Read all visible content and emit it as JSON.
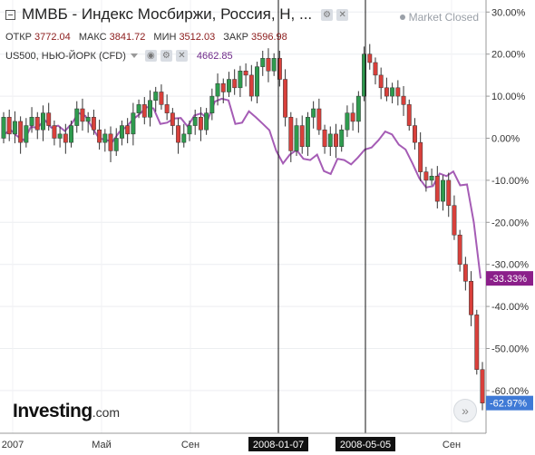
{
  "header": {
    "title": "ММВБ - Индекс Мосбиржи, Россия, Н, ...",
    "status": "Market Closed"
  },
  "ohlc": {
    "open_label": "ОТКР",
    "open": "3772.04",
    "high_label": "МАКС",
    "high": "3841.72",
    "low_label": "МИН",
    "low": "3512.03",
    "close_label": "ЗАКР",
    "close": "3596.98"
  },
  "compare": {
    "name": "US500, НЬЮ-ЙОРК (CFD)",
    "value": "4662.85"
  },
  "logo": {
    "text": "Investing",
    "domain": ".com"
  },
  "colors": {
    "up": "#2e9b4e",
    "down": "#d9403b",
    "compare_line": "#a55cb5",
    "compare_badge": "#8b1f8a",
    "last_badge": "#3f7ad6"
  },
  "chart_data": {
    "type": "candlestick",
    "y_axis": {
      "side": "right",
      "ticks": [
        "30.00%",
        "20.00%",
        "10.00%",
        "0.00%",
        "-10.00%",
        "-20.00%",
        "-30.00%",
        "-40.00%",
        "-50.00%",
        "-60.00%"
      ],
      "range": [
        -63,
        31
      ]
    },
    "x_axis": {
      "ticks": [
        "2007",
        "Май",
        "Сен",
        "2008-01-07",
        "2008-05-05",
        "Сен"
      ]
    },
    "crosshairs": [
      "2008-01-07",
      "2008-05-05"
    ],
    "last_values": {
      "compare": "-33.33%",
      "main": "-62.97%"
    },
    "compare_values": [
      0.8,
      2,
      0.5,
      -0.5,
      2.7,
      2.5,
      4.4,
      2.5,
      3,
      1.7,
      3.5,
      6,
      5.3,
      2.5,
      0,
      -0.4,
      -0.8,
      1.5,
      2.7,
      4.5,
      5.8,
      7.4,
      7.1,
      3.4,
      3.7,
      4.7,
      4.8,
      2.8,
      5.4,
      5.9,
      4.5,
      8.7,
      9.4,
      9,
      3.4,
      3.7,
      6.4,
      5,
      3.5,
      1.9,
      -3,
      -6,
      -3.9,
      -2.8,
      -4.9,
      -5.2,
      -3.9,
      -7.8,
      -8.5,
      -4.9,
      -5.2,
      -6.2,
      -4.6,
      -2.7,
      -2.2,
      -0.5,
      1.6,
      0.9,
      -1.5,
      -2.7,
      -6,
      -9.5,
      -11.7,
      -11.4,
      -8.4,
      -9,
      -7.9,
      -11.2,
      -11,
      -20,
      -33.33
    ],
    "candles": [
      {
        "o": 0,
        "c": 5
      },
      {
        "o": 5,
        "c": 1
      },
      {
        "o": 1,
        "c": 4
      },
      {
        "o": 4,
        "c": -1
      },
      {
        "o": -1,
        "c": 3
      },
      {
        "o": 3,
        "c": 5
      },
      {
        "o": 5,
        "c": 2
      },
      {
        "o": 2,
        "c": 6
      },
      {
        "o": 6,
        "c": 3
      },
      {
        "o": 3,
        "c": 0
      },
      {
        "o": 0,
        "c": 1
      },
      {
        "o": 1,
        "c": -1
      },
      {
        "o": -1,
        "c": 3
      },
      {
        "o": 3,
        "c": 7
      },
      {
        "o": 7,
        "c": 4
      },
      {
        "o": 4,
        "c": 5
      },
      {
        "o": 5,
        "c": 2
      },
      {
        "o": 2,
        "c": -1
      },
      {
        "o": -1,
        "c": 1
      },
      {
        "o": 1,
        "c": -3
      },
      {
        "o": -3,
        "c": 0
      },
      {
        "o": 0,
        "c": 3
      },
      {
        "o": 3,
        "c": 1
      },
      {
        "o": 1,
        "c": 6
      },
      {
        "o": 6,
        "c": 8
      },
      {
        "o": 8,
        "c": 5
      },
      {
        "o": 5,
        "c": 9
      },
      {
        "o": 9,
        "c": 11
      },
      {
        "o": 11,
        "c": 8
      },
      {
        "o": 8,
        "c": 6
      },
      {
        "o": 6,
        "c": 3
      },
      {
        "o": 3,
        "c": -1
      },
      {
        "o": -1,
        "c": 1
      },
      {
        "o": 1,
        "c": 3
      },
      {
        "o": 3,
        "c": 5
      },
      {
        "o": 5,
        "c": 2
      },
      {
        "o": 2,
        "c": 6
      },
      {
        "o": 6,
        "c": 10
      },
      {
        "o": 10,
        "c": 13
      },
      {
        "o": 13,
        "c": 11
      },
      {
        "o": 11,
        "c": 14
      },
      {
        "o": 14,
        "c": 12
      },
      {
        "o": 12,
        "c": 16
      },
      {
        "o": 16,
        "c": 15
      },
      {
        "o": 15,
        "c": 10
      },
      {
        "o": 10,
        "c": 17
      },
      {
        "o": 17,
        "c": 19
      },
      {
        "o": 19,
        "c": 16
      },
      {
        "o": 16,
        "c": 19
      },
      {
        "o": 19,
        "c": 14
      },
      {
        "o": 14,
        "c": 5
      },
      {
        "o": 5,
        "c": -3
      },
      {
        "o": -3,
        "c": 3
      },
      {
        "o": 3,
        "c": -2
      },
      {
        "o": -2,
        "c": 5
      },
      {
        "o": 5,
        "c": 7
      },
      {
        "o": 7,
        "c": 2
      },
      {
        "o": 2,
        "c": -2
      },
      {
        "o": -2,
        "c": 1
      },
      {
        "o": 1,
        "c": -2
      },
      {
        "o": -2,
        "c": 2
      },
      {
        "o": 2,
        "c": 6
      },
      {
        "o": 6,
        "c": 4
      },
      {
        "o": 4,
        "c": 10
      },
      {
        "o": 10,
        "c": 20
      },
      {
        "o": 20,
        "c": 18
      },
      {
        "o": 18,
        "c": 15
      },
      {
        "o": 15,
        "c": 12
      },
      {
        "o": 12,
        "c": 10
      },
      {
        "o": 10,
        "c": 12
      },
      {
        "o": 12,
        "c": 10
      },
      {
        "o": 10,
        "c": 8
      },
      {
        "o": 8,
        "c": 3
      },
      {
        "o": 3,
        "c": -1
      },
      {
        "o": -1,
        "c": -8
      },
      {
        "o": -8,
        "c": -10
      },
      {
        "o": -10,
        "c": -9
      },
      {
        "o": -9,
        "c": -15
      },
      {
        "o": -15,
        "c": -10
      },
      {
        "o": -10,
        "c": -16
      },
      {
        "o": -16,
        "c": -23
      },
      {
        "o": -23,
        "c": -30
      },
      {
        "o": -30,
        "c": -34
      },
      {
        "o": -34,
        "c": -42
      },
      {
        "o": -42,
        "c": -55
      },
      {
        "o": -55,
        "c": -62.97
      }
    ]
  }
}
